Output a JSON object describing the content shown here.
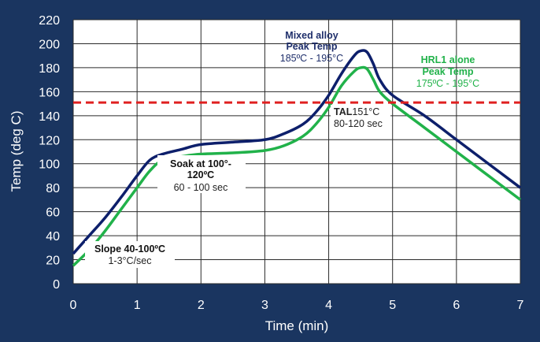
{
  "chart_data": {
    "type": "line",
    "xlabel": "Time (min)",
    "ylabel": "Temp (deg C)",
    "xlim": [
      0,
      7
    ],
    "ylim": [
      0,
      220
    ],
    "xticks": [
      0,
      1,
      2,
      3,
      4,
      5,
      6,
      7
    ],
    "yticks": [
      0,
      20,
      40,
      60,
      80,
      100,
      120,
      140,
      160,
      180,
      200,
      220
    ],
    "grid": true,
    "series": [
      {
        "color": "#0d1f6b",
        "points": [
          [
            0,
            25
          ],
          [
            0.25,
            40
          ],
          [
            0.5,
            55
          ],
          [
            0.75,
            72
          ],
          [
            1,
            90
          ],
          [
            1.2,
            103
          ],
          [
            1.4,
            108
          ],
          [
            1.7,
            112
          ],
          [
            2,
            116
          ],
          [
            2.5,
            118
          ],
          [
            3,
            120
          ],
          [
            3.3,
            125
          ],
          [
            3.6,
            133
          ],
          [
            3.8,
            143
          ],
          [
            4,
            157
          ],
          [
            4.2,
            175
          ],
          [
            4.4,
            190
          ],
          [
            4.5,
            194
          ],
          [
            4.6,
            193
          ],
          [
            4.7,
            183
          ],
          [
            4.8,
            170
          ],
          [
            5,
            157
          ],
          [
            5.5,
            140
          ],
          [
            6,
            120
          ],
          [
            6.5,
            100
          ],
          [
            7,
            80
          ]
        ]
      },
      {
        "color": "#21b24a",
        "points": [
          [
            0,
            15
          ],
          [
            0.25,
            28
          ],
          [
            0.5,
            44
          ],
          [
            0.75,
            62
          ],
          [
            1,
            80
          ],
          [
            1.2,
            94
          ],
          [
            1.4,
            103
          ],
          [
            1.7,
            106
          ],
          [
            2,
            108
          ],
          [
            2.5,
            109
          ],
          [
            3,
            111
          ],
          [
            3.3,
            115
          ],
          [
            3.6,
            123
          ],
          [
            3.8,
            133
          ],
          [
            4,
            147
          ],
          [
            4.2,
            165
          ],
          [
            4.4,
            177
          ],
          [
            4.5,
            180
          ],
          [
            4.6,
            179
          ],
          [
            4.7,
            170
          ],
          [
            4.8,
            160
          ],
          [
            5,
            150
          ],
          [
            5.5,
            130
          ],
          [
            6,
            110
          ],
          [
            6.5,
            90
          ],
          [
            7,
            70
          ]
        ]
      }
    ],
    "reference_line": {
      "y": 151,
      "color": "#e02020",
      "style": "dashed"
    },
    "annotations": {
      "mixed_title_1": "Mixed alloy",
      "mixed_title_2": "Peak Temp",
      "mixed_range": "185ºC - 195°C",
      "hrl_title_1": "HRL1 alone",
      "hrl_title_2": "Peak Temp",
      "hrl_range": "175ºC - 195°C",
      "tal_label": "TAL",
      "tal_value": "151°C",
      "tal_range": "80-120 sec",
      "soak_title_1": "Soak at 100°-",
      "soak_title_2": "120ºC",
      "soak_range": "60 - 100 sec",
      "slope_title": "Slope 40-100ºC",
      "slope_range": "1-3°C/sec"
    }
  }
}
